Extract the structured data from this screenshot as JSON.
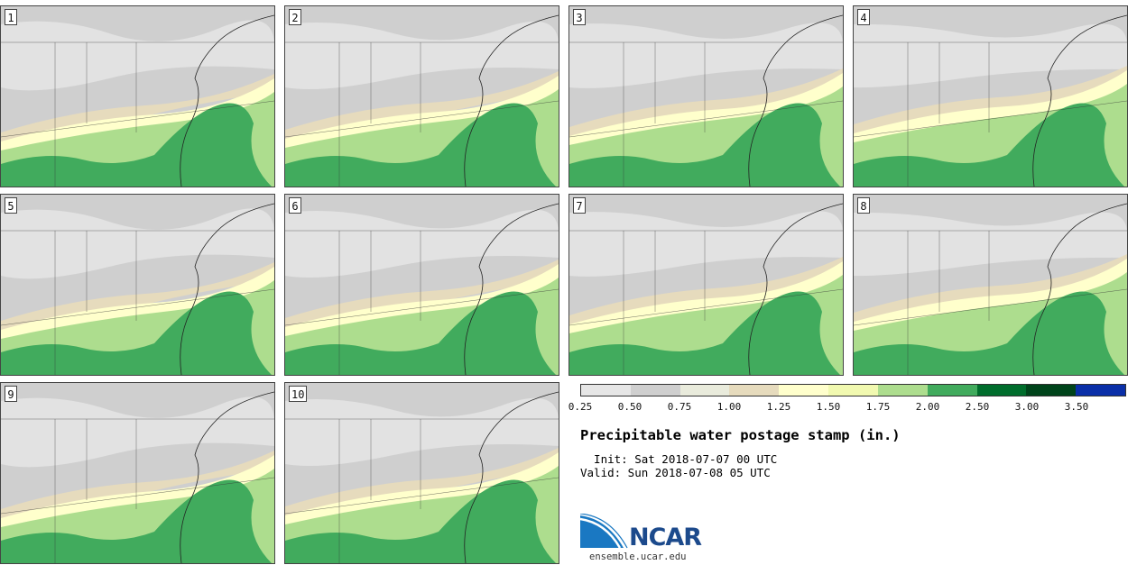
{
  "panels": [
    {
      "label": "1"
    },
    {
      "label": "2"
    },
    {
      "label": "3"
    },
    {
      "label": "4"
    },
    {
      "label": "5"
    },
    {
      "label": "6"
    },
    {
      "label": "7"
    },
    {
      "label": "8"
    },
    {
      "label": "9"
    },
    {
      "label": "10"
    }
  ],
  "colorbar": {
    "colors": [
      "#e6e6e6",
      "#cfcfcf",
      "#e9ebdc",
      "#e6dbbd",
      "#ffffcc",
      "#f1f9b0",
      "#addd8e",
      "#41ab5d",
      "#006d2c",
      "#00441b",
      "#0a2fa8"
    ],
    "ticks": [
      "0.25",
      "0.50",
      "0.75",
      "1.00",
      "1.25",
      "1.50",
      "1.75",
      "2.00",
      "2.50",
      "3.00",
      "3.50"
    ]
  },
  "title": "Precipitable water postage stamp (in.)",
  "init_line": "  Init: Sat 2018-07-07 00 UTC",
  "valid_line": "Valid: Sun 2018-07-08 05 UTC",
  "logo_text": "NCAR",
  "site": "ensemble.ucar.edu"
}
